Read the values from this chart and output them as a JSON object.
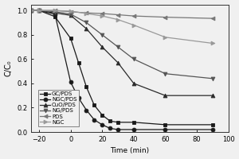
{
  "title": "Time (min)",
  "ylabel": "C/C₀",
  "xlim": [
    -25,
    100
  ],
  "ylim": [
    0.0,
    1.05
  ],
  "xticks": [
    -20,
    0,
    20,
    40,
    60,
    80,
    100
  ],
  "yticks": [
    0.0,
    0.2,
    0.4,
    0.6,
    0.8,
    1.0
  ],
  "series": {
    "GC/PDS": {
      "x": [
        -25,
        -20,
        -10,
        0,
        5,
        10,
        15,
        20,
        25,
        30,
        40,
        60,
        90
      ],
      "y": [
        1.0,
        1.0,
        0.95,
        0.77,
        0.57,
        0.37,
        0.22,
        0.14,
        0.09,
        0.08,
        0.08,
        0.06,
        0.06
      ],
      "marker": "s",
      "color": "#1a1a1a",
      "mfc": "#1a1a1a",
      "label": "GC/PDS"
    },
    "NGC/PDS": {
      "x": [
        -25,
        -20,
        -10,
        0,
        5,
        10,
        15,
        20,
        25,
        30,
        40,
        60,
        90
      ],
      "y": [
        1.0,
        1.0,
        0.97,
        0.41,
        0.28,
        0.18,
        0.1,
        0.06,
        0.03,
        0.02,
        0.02,
        0.02,
        0.02
      ],
      "marker": "o",
      "color": "#1a1a1a",
      "mfc": "#1a1a1a",
      "label": "NGC/PDS"
    },
    "CuO/PDS": {
      "x": [
        -25,
        -20,
        -10,
        0,
        10,
        20,
        30,
        40,
        60,
        90
      ],
      "y": [
        1.0,
        1.0,
        0.98,
        0.96,
        0.85,
        0.7,
        0.57,
        0.4,
        0.3,
        0.3
      ],
      "marker": "^",
      "color": "#2a2a2a",
      "mfc": "#2a2a2a",
      "label": "CuO/PDS"
    },
    "NG/PDS": {
      "x": [
        -25,
        -20,
        -10,
        0,
        10,
        20,
        30,
        40,
        60,
        90
      ],
      "y": [
        1.0,
        1.0,
        0.99,
        0.97,
        0.9,
        0.8,
        0.7,
        0.6,
        0.48,
        0.44
      ],
      "marker": "v",
      "color": "#555555",
      "mfc": "#555555",
      "label": "NG/PDS"
    },
    "PDS": {
      "x": [
        -25,
        -20,
        -10,
        0,
        10,
        20,
        30,
        40,
        60,
        90
      ],
      "y": [
        1.0,
        1.0,
        1.0,
        0.99,
        0.98,
        0.975,
        0.965,
        0.955,
        0.945,
        0.935
      ],
      "marker": "<",
      "color": "#777777",
      "mfc": "#777777",
      "label": "PDS"
    },
    "NGC": {
      "x": [
        -25,
        -20,
        -10,
        0,
        10,
        20,
        30,
        40,
        60,
        90
      ],
      "y": [
        1.0,
        1.0,
        1.0,
        0.995,
        0.975,
        0.955,
        0.925,
        0.88,
        0.78,
        0.73
      ],
      "marker": ">",
      "color": "#999999",
      "mfc": "#999999",
      "label": "NGC"
    }
  },
  "legend_fontsize": 5.0,
  "background_color": "#f0f0f0"
}
